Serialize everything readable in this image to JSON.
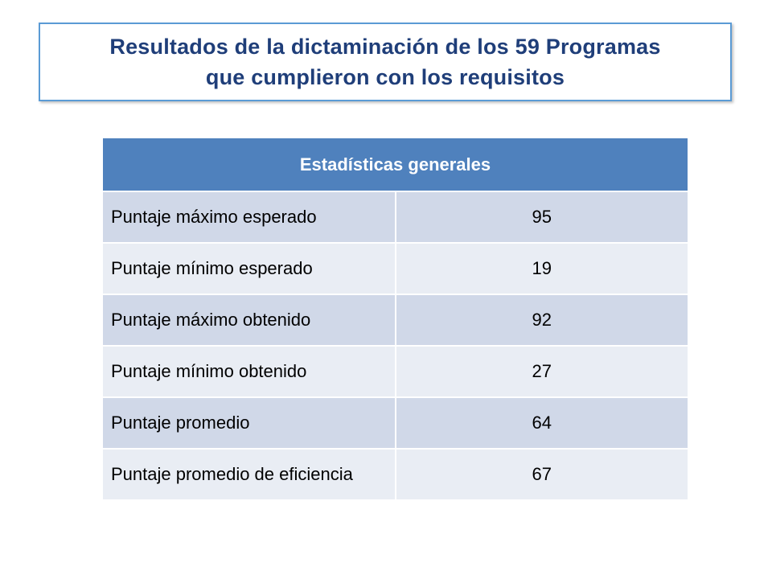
{
  "title": {
    "line1": "Resultados de la dictaminación de los 59 Programas",
    "line2": "que cumplieron con los requisitos"
  },
  "table": {
    "header": "Estadísticas generales",
    "rows": [
      {
        "label": "Puntaje máximo esperado",
        "value": "95"
      },
      {
        "label": "Puntaje mínimo esperado",
        "value": "19"
      },
      {
        "label": "Puntaje máximo obtenido",
        "value": "92"
      },
      {
        "label": "Puntaje mínimo obtenido",
        "value": "27"
      },
      {
        "label": "Puntaje promedio",
        "value": "64"
      },
      {
        "label": "Puntaje promedio de eficiencia",
        "value": "67"
      }
    ]
  },
  "colors": {
    "title_text": "#1f3e79",
    "title_border": "#5b9bd5",
    "header_bg": "#4f81bd",
    "row_dark": "#d0d8e8",
    "row_light": "#e9edf4"
  }
}
